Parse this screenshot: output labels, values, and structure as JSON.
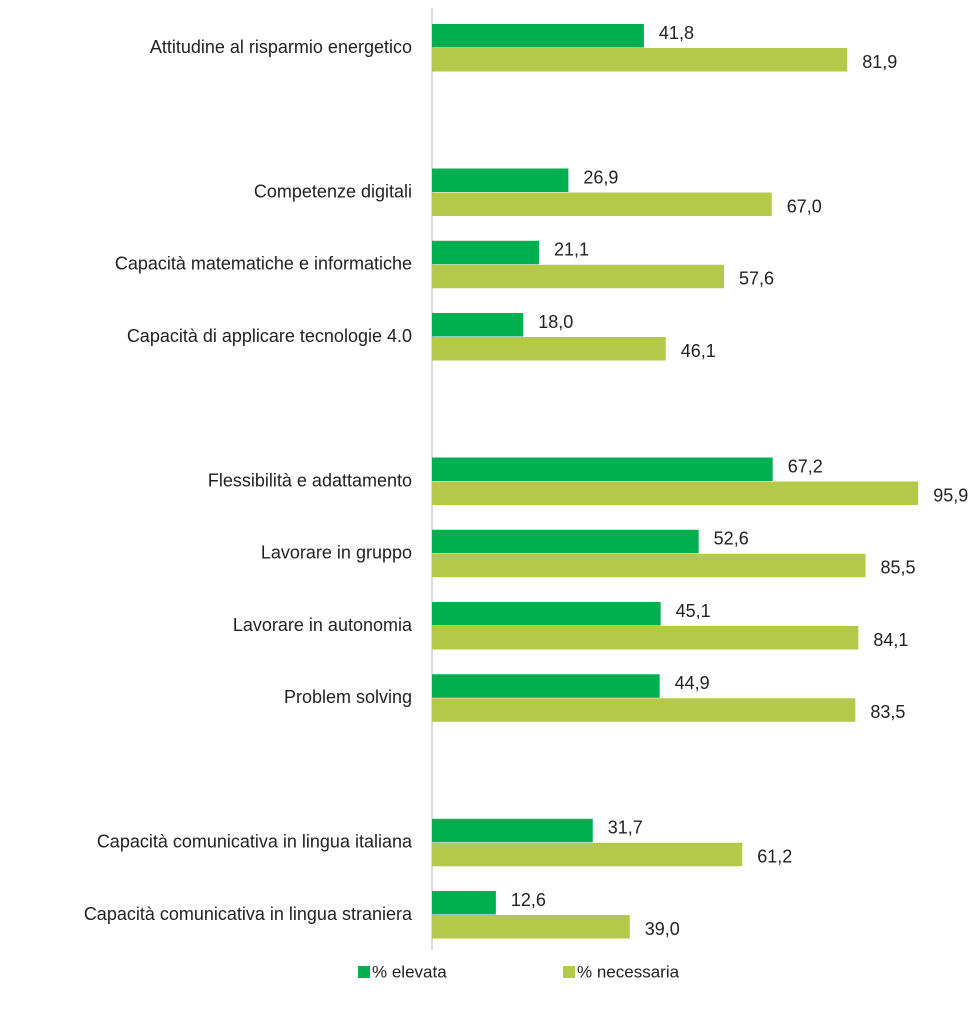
{
  "chart_data": {
    "type": "hbar",
    "categories": [
      "Attitudine al risparmio energetico",
      null,
      "Competenze digitali",
      "Capacità matematiche e informatiche",
      "Capacità di applicare tecnologie 4.0",
      null,
      "Flessibilità e adattamento",
      "Lavorare in gruppo",
      "Lavorare in autonomia",
      "Problem solving",
      null,
      "Capacità comunicativa in lingua italiana",
      "Capacità comunicativa in lingua straniera"
    ],
    "series": [
      {
        "name": "% elevata",
        "color": "#00b050",
        "values": [
          41.8,
          null,
          26.9,
          21.1,
          18.0,
          null,
          67.2,
          52.6,
          45.1,
          44.9,
          null,
          31.7,
          12.6
        ],
        "value_labels": [
          "41,8",
          null,
          "26,9",
          "21,1",
          "18,0",
          null,
          "67,2",
          "52,6",
          "45,1",
          "44,9",
          null,
          "31,7",
          "12,6"
        ]
      },
      {
        "name": "% necessaria",
        "color": "#b4c84a",
        "values": [
          81.9,
          null,
          67.0,
          57.6,
          46.1,
          null,
          95.9,
          85.5,
          84.1,
          83.5,
          null,
          61.2,
          39.0
        ],
        "value_labels": [
          "81,9",
          null,
          "67,0",
          "57,6",
          "46,1",
          null,
          "95,9",
          "85,5",
          "84,1",
          "83,5",
          null,
          "61,2",
          "39,0"
        ]
      }
    ],
    "xlim": [
      0,
      100
    ],
    "legend": "bottom"
  }
}
